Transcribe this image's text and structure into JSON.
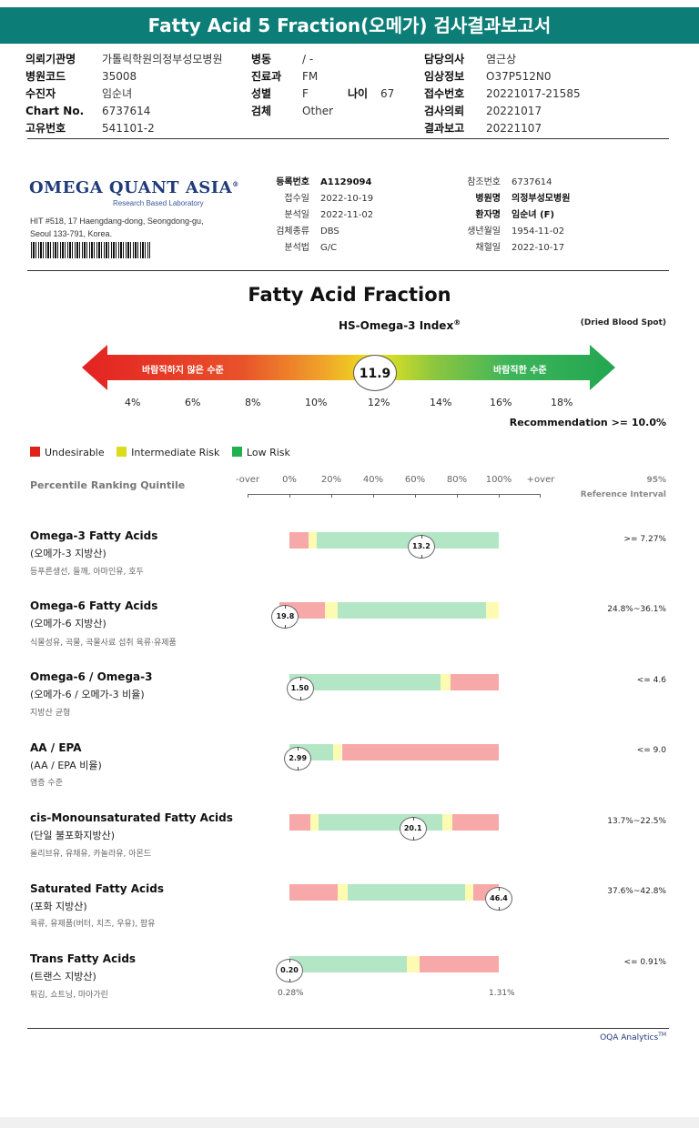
{
  "header": {
    "title": "Fatty Acid 5 Fraction(오메가) 검사결과보고서"
  },
  "patient_info": {
    "col1": [
      {
        "label": "의뢰기관명",
        "value": "가톨릭학원의정부성모병원"
      },
      {
        "label": "병원코드",
        "value": "35008"
      },
      {
        "label": "수진자",
        "value": "임순녀"
      },
      {
        "label": "Chart No.",
        "value": "6737614"
      },
      {
        "label": "고유번호",
        "value": "541101-2"
      }
    ],
    "col2": [
      {
        "label": "병동",
        "value": "/ -"
      },
      {
        "label": "진료과",
        "value": "FM"
      },
      {
        "label": "성별",
        "value": "F"
      },
      {
        "label": "검체",
        "value": "Other"
      }
    ],
    "age": {
      "label": "나이",
      "value": "67"
    },
    "col3": [
      {
        "label": "담당의사",
        "value": "염근상"
      },
      {
        "label": "임상정보",
        "value": "O37P512N0"
      },
      {
        "label": "접수번호",
        "value": "20221017-21585"
      },
      {
        "label": "검사의뢰",
        "value": "20221017"
      },
      {
        "label": "결과보고",
        "value": "20221107"
      }
    ]
  },
  "lab": {
    "logo": "OMEGA QUANT ASIA",
    "logo_trademark": "®",
    "logo_sub": "Research Based Laboratory",
    "address_line1": "HIT #518, 17 Haengdang-dong, Seongdong-gu,",
    "address_line2": "Seoul 133-791, Korea.",
    "left_rows": [
      {
        "label": "등록번호",
        "value": "A1129094"
      },
      {
        "label": "접수일",
        "value": "2022-10-19"
      },
      {
        "label": "분석일",
        "value": "2022-11-02"
      },
      {
        "label": "검체종류",
        "value": "DBS"
      },
      {
        "label": "분석법",
        "value": "G/C"
      }
    ],
    "right_rows": [
      {
        "label": "참조번호",
        "value": "6737614"
      },
      {
        "label": "병원명",
        "value": "의정부성모병원"
      },
      {
        "label": "환자명",
        "value": "임순녀 (F)"
      },
      {
        "label": "생년월일",
        "value": "1954-11-02"
      },
      {
        "label": "채혈일",
        "value": "2022-10-17"
      }
    ]
  },
  "fraction": {
    "title": "Fatty Acid Fraction",
    "index_title": "HS-Omega-3 Index",
    "index_mark": "®",
    "sample": "(Dried Blood Spot)",
    "left_label": "바람직하지 않은 수준",
    "right_label": "바람직한 수준",
    "value": "11.9",
    "value_num": 11.9,
    "ticks": [
      "4%",
      "6%",
      "8%",
      "10%",
      "12%",
      "14%",
      "16%",
      "18%"
    ],
    "recommendation": "Recommendation  >= 10.0%"
  },
  "legend": {
    "items": [
      {
        "label": "Undesirable",
        "color": "#e0201b"
      },
      {
        "label": "Intermediate Risk",
        "color": "#dcdc1e"
      },
      {
        "label": "Low Risk",
        "color": "#1fb14c"
      }
    ]
  },
  "percentile": {
    "label": "Percentile Ranking Quintile",
    "scale": [
      "-over",
      "0%",
      "20%",
      "40%",
      "60%",
      "80%",
      "100%",
      "+over"
    ],
    "ref_line1": "95%",
    "ref_line2": "Reference Interval"
  },
  "colors": {
    "red": "#f7a8a8",
    "yellow": "#fdfbb1",
    "green": "#b3e6c5"
  },
  "rows": [
    {
      "name": "Omega-3 Fatty Acids",
      "sub": "(오메가-3 지방산)",
      "food": "등푸른생선, 들깨, 아마인유, 호두",
      "ref": ">= 7.27%",
      "value": "13.2",
      "value_pct": 63,
      "segments": [
        [
          "red",
          0,
          9
        ],
        [
          "yellow",
          9,
          13
        ],
        [
          "green",
          13,
          100
        ]
      ]
    },
    {
      "name": "Omega-6 Fatty Acids",
      "sub": "(오메가-6 지방산)",
      "food": "식물성유, 곡물, 곡물사료 섭취 육류·유제품",
      "ref": "24.8%~36.1%",
      "value": "19.8",
      "value_pct": -2,
      "segments": [
        [
          "red",
          -5,
          17
        ],
        [
          "yellow",
          17,
          23
        ],
        [
          "green",
          23,
          94
        ],
        [
          "yellow",
          94,
          100
        ]
      ]
    },
    {
      "name": "Omega-6 / Omega-3",
      "sub": "(오메가-6 / 오메가-3 비율)",
      "food": "지방산 균형",
      "ref": "<= 4.6",
      "value": "1.50",
      "value_pct": 5,
      "segments": [
        [
          "green",
          0,
          72
        ],
        [
          "yellow",
          72,
          77
        ],
        [
          "red",
          77,
          100
        ]
      ]
    },
    {
      "name": "AA / EPA",
      "sub": "(AA / EPA 비율)",
      "food": "염증 수준",
      "ref": "<= 9.0",
      "value": "2.99",
      "value_pct": 4,
      "segments": [
        [
          "green",
          0,
          21
        ],
        [
          "yellow",
          21,
          25
        ],
        [
          "red",
          25,
          100
        ]
      ]
    },
    {
      "name": "cis-Monounsaturated Fatty Acids",
      "sub": "(단일 불포화지방산)",
      "food": "올리브유, 유채유, 카놀라유, 아몬드",
      "ref": "13.7%~22.5%",
      "value": "20.1",
      "value_pct": 59,
      "segments": [
        [
          "red",
          0,
          10
        ],
        [
          "yellow",
          10,
          14
        ],
        [
          "green",
          14,
          73
        ],
        [
          "yellow",
          73,
          78
        ],
        [
          "red",
          78,
          100
        ]
      ]
    },
    {
      "name": "Saturated Fatty Acids",
      "sub": "(포화 지방산)",
      "food": "육류, 유제품(버터, 치즈, 우유), 팜유",
      "ref": "37.6%~42.8%",
      "value": "46.4",
      "value_pct": 100,
      "segments": [
        [
          "red",
          0,
          23
        ],
        [
          "yellow",
          23,
          28
        ],
        [
          "green",
          28,
          84
        ],
        [
          "yellow",
          84,
          88
        ],
        [
          "red",
          88,
          100
        ]
      ]
    },
    {
      "name": "Trans Fatty Acids",
      "sub": "(트랜스 지방산)",
      "food": "튀김, 쇼트닝, 마아가린",
      "ref": "<= 0.91%",
      "value": "0.20",
      "value_pct": 0,
      "segments": [
        [
          "green",
          0,
          56
        ],
        [
          "yellow",
          56,
          62
        ],
        [
          "red",
          62,
          100
        ]
      ]
    }
  ],
  "trans_range": {
    "min": "0.28%",
    "max": "1.31%"
  },
  "footer": {
    "text": "OQA Analytics",
    "mark": "TM"
  }
}
